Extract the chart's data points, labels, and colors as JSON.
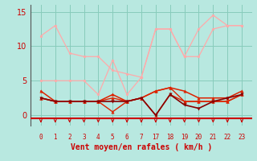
{
  "background_color": "#b8e8e0",
  "grid_color": "#88ccbb",
  "xlabel": "Vent moyen/en rafales ( km/h )",
  "xlabel_color": "#cc0000",
  "xlabel_fontsize": 7,
  "tick_color": "#cc0000",
  "ylim": [
    -1.5,
    16
  ],
  "yticks": [
    0,
    5,
    10,
    15
  ],
  "x_indices": [
    0,
    1,
    2,
    3,
    4,
    5,
    6,
    7,
    8,
    9,
    10,
    11,
    12,
    13,
    14
  ],
  "x_labels": [
    "0",
    "1",
    "2",
    "3",
    "4",
    "5",
    "6",
    "7",
    "17",
    "18",
    "19",
    "20",
    "21",
    "22",
    "23"
  ],
  "lines": [
    {
      "xi": [
        0,
        1,
        2,
        3,
        4,
        5,
        6,
        7,
        8,
        9,
        10,
        11,
        12,
        13,
        14
      ],
      "y": [
        11.5,
        13,
        9,
        8.5,
        8.5,
        6.5,
        6.0,
        5.5,
        12.5,
        12.5,
        8.5,
        12.5,
        14.5,
        13.0,
        13.0
      ],
      "color": "#ffaaaa",
      "lw": 0.9,
      "marker": "o",
      "ms": 2.0,
      "zorder": 2
    },
    {
      "xi": [
        0,
        1,
        2,
        3,
        4,
        5,
        6,
        7,
        8,
        9,
        10,
        11,
        12,
        13,
        14
      ],
      "y": [
        5.0,
        5.0,
        5.0,
        5.0,
        3.0,
        8.0,
        3.0,
        5.5,
        12.5,
        12.5,
        8.5,
        8.5,
        12.5,
        13.0,
        13.0
      ],
      "color": "#ffaaaa",
      "lw": 0.9,
      "marker": "o",
      "ms": 2.0,
      "zorder": 2
    },
    {
      "xi": [
        0,
        1,
        2,
        3,
        4,
        5,
        6,
        7,
        8,
        9,
        10,
        11,
        12,
        13,
        14
      ],
      "y": [
        3.5,
        2.0,
        2.0,
        2.0,
        2.0,
        3.0,
        2.0,
        2.5,
        3.5,
        4.0,
        3.5,
        2.5,
        2.5,
        2.5,
        3.5
      ],
      "color": "#dd2200",
      "lw": 1.1,
      "marker": "^",
      "ms": 2.5,
      "zorder": 3
    },
    {
      "xi": [
        0,
        1,
        2,
        3,
        4,
        5,
        6,
        7,
        8,
        9,
        10,
        11,
        12,
        13,
        14
      ],
      "y": [
        2.5,
        2.0,
        2.0,
        2.0,
        2.0,
        2.5,
        2.0,
        2.5,
        3.5,
        4.0,
        2.0,
        2.0,
        2.0,
        2.0,
        3.0
      ],
      "color": "#dd2200",
      "lw": 1.0,
      "marker": "^",
      "ms": 2.5,
      "zorder": 3
    },
    {
      "xi": [
        0,
        1,
        2,
        3,
        4,
        5,
        6,
        7,
        8,
        9,
        10,
        11,
        12,
        13,
        14
      ],
      "y": [
        2.5,
        2.0,
        2.0,
        2.0,
        2.0,
        0.5,
        2.0,
        2.5,
        0.0,
        3.0,
        2.0,
        2.0,
        2.0,
        2.0,
        3.0
      ],
      "color": "#dd2200",
      "lw": 1.0,
      "marker": "^",
      "ms": 2.5,
      "zorder": 3
    },
    {
      "xi": [
        0,
        1,
        2,
        3,
        4,
        5,
        6,
        7,
        8,
        9,
        10,
        11,
        12,
        13,
        14
      ],
      "y": [
        2.5,
        2.0,
        2.0,
        2.0,
        2.0,
        2.0,
        2.0,
        2.5,
        0.0,
        3.0,
        1.5,
        1.0,
        2.0,
        2.5,
        3.0
      ],
      "color": "#880000",
      "lw": 1.2,
      "marker": "v",
      "ms": 2.5,
      "zorder": 4
    }
  ]
}
